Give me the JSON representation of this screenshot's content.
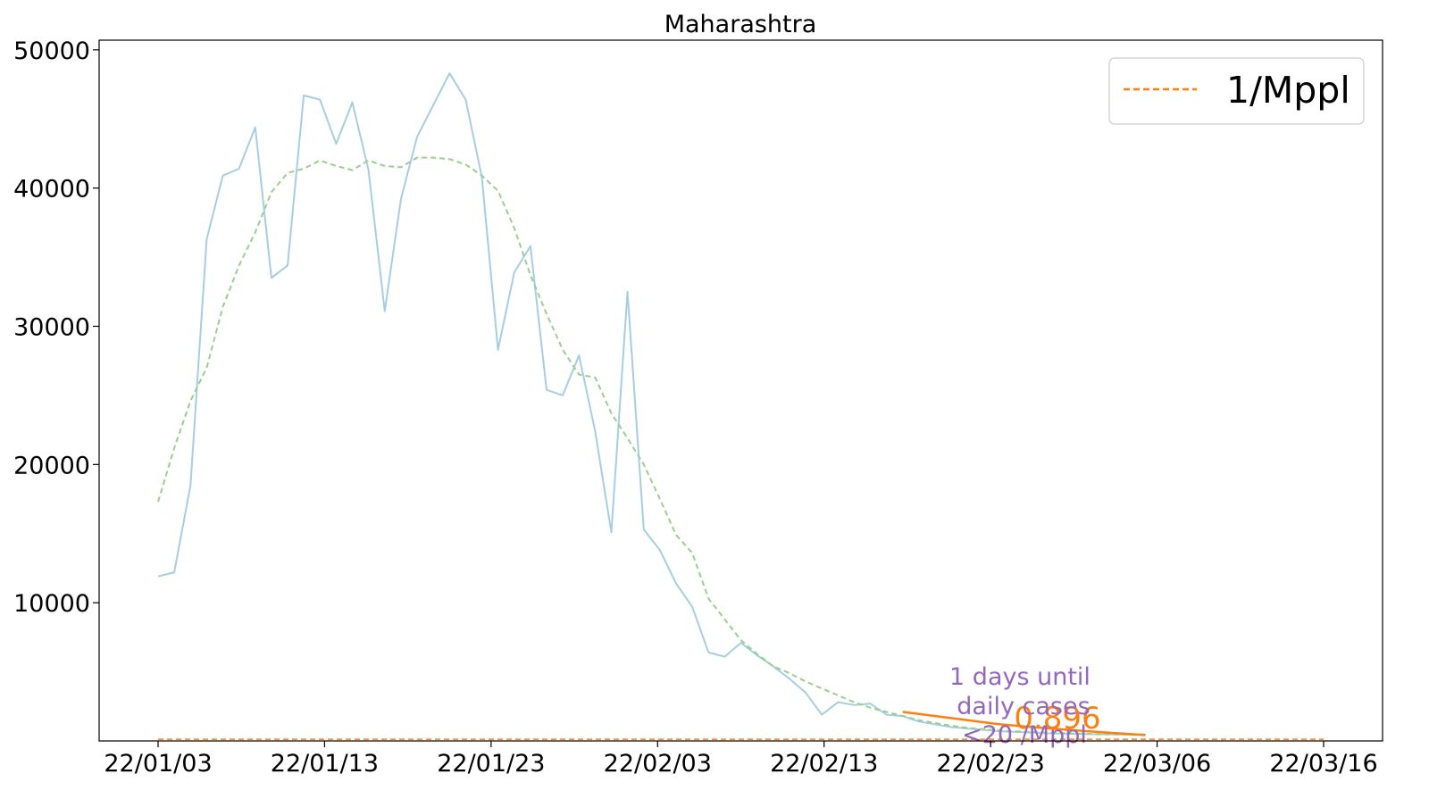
{
  "chart_data": {
    "type": "line",
    "title": "Maharashtra",
    "xlabel": "",
    "ylabel": "",
    "x_tick_labels": [
      "22/01/03",
      "22/01/13",
      "22/01/23",
      "22/02/03",
      "22/02/13",
      "22/02/23",
      "22/03/06",
      "22/03/16"
    ],
    "y_tick_labels": [
      "10000",
      "20000",
      "30000",
      "40000",
      "50000"
    ],
    "x_range": [
      "2022-01-03",
      "2022-03-16"
    ],
    "ylim": [
      0,
      50700
    ],
    "grid": false,
    "legend": {
      "position": "top-right",
      "entries": [
        "1/Mppl"
      ]
    },
    "colors": {
      "daily": "#a6cee3",
      "rolling_avg": "#98d08c",
      "fit": "#ff7f0e",
      "threshold": "#ff7f0e",
      "annotation": "#9467bd"
    },
    "series": [
      {
        "values_x": [
          "2022-01-03",
          "2022-01-04",
          "2022-01-05",
          "2022-01-06",
          "2022-01-07",
          "2022-01-08",
          "2022-01-09",
          "2022-01-10",
          "2022-01-11",
          "2022-01-12",
          "2022-01-13",
          "2022-01-14",
          "2022-01-15",
          "2022-01-16",
          "2022-01-17",
          "2022-01-18",
          "2022-01-19",
          "2022-01-20",
          "2022-01-21",
          "2022-01-22",
          "2022-01-23",
          "2022-01-24",
          "2022-01-25",
          "2022-01-26",
          "2022-01-27",
          "2022-01-28",
          "2022-01-29",
          "2022-01-30",
          "2022-01-31",
          "2022-02-01",
          "2022-02-02",
          "2022-02-03",
          "2022-02-04",
          "2022-02-05",
          "2022-02-06",
          "2022-02-07",
          "2022-02-08",
          "2022-02-09",
          "2022-02-10",
          "2022-02-11",
          "2022-02-12",
          "2022-02-13",
          "2022-02-14",
          "2022-02-15",
          "2022-02-16",
          "2022-02-17",
          "2022-02-18",
          "2022-02-19",
          "2022-02-20",
          "2022-02-21",
          "2022-02-22",
          "2022-02-23",
          "2022-02-24",
          "2022-02-25",
          "2022-02-26",
          "2022-02-27",
          "2022-02-28",
          "2022-03-01",
          "2022-03-02",
          "2022-03-03",
          "2022-03-04",
          "2022-03-05"
        ],
        "values": [
          11900,
          12200,
          18500,
          36300,
          40900,
          41400,
          44400,
          33500,
          34400,
          46700,
          46400,
          43200,
          46200,
          41300,
          31100,
          39200,
          43700,
          46000,
          48300,
          46400,
          40800,
          28300,
          33900,
          35800,
          25400,
          25000,
          27900,
          22400,
          15100,
          32500,
          15300,
          13800,
          11400,
          9700,
          6400,
          6100,
          7100,
          6200,
          5400,
          4500,
          3500,
          1900,
          2800,
          2600,
          2700,
          1900,
          1800,
          1400,
          1200,
          1000,
          900,
          800,
          700,
          650,
          600,
          550,
          520,
          500,
          480,
          470,
          450,
          430
        ]
      },
      {
        "values_x": [
          "2022-01-03",
          "2022-01-04",
          "2022-01-05",
          "2022-01-06",
          "2022-01-07",
          "2022-01-08",
          "2022-01-09",
          "2022-01-10",
          "2022-01-11",
          "2022-01-12",
          "2022-01-13",
          "2022-01-14",
          "2022-01-15",
          "2022-01-16",
          "2022-01-17",
          "2022-01-18",
          "2022-01-19",
          "2022-01-20",
          "2022-01-21",
          "2022-01-22",
          "2022-01-23",
          "2022-01-24",
          "2022-01-25",
          "2022-01-26",
          "2022-01-27",
          "2022-01-28",
          "2022-01-29",
          "2022-01-30",
          "2022-01-31",
          "2022-02-01",
          "2022-02-02",
          "2022-02-03",
          "2022-02-04",
          "2022-02-05",
          "2022-02-06",
          "2022-02-07",
          "2022-02-08",
          "2022-02-09",
          "2022-02-10",
          "2022-02-11",
          "2022-02-12",
          "2022-02-13",
          "2022-02-14",
          "2022-02-15",
          "2022-02-16",
          "2022-02-17",
          "2022-02-18",
          "2022-02-19",
          "2022-02-20",
          "2022-02-21",
          "2022-02-22",
          "2022-02-23",
          "2022-02-24",
          "2022-02-25",
          "2022-02-26",
          "2022-02-27",
          "2022-02-28",
          "2022-03-01",
          "2022-03-02",
          "2022-03-03",
          "2022-03-04",
          "2022-03-05"
        ],
        "values": [
          17300,
          21200,
          24600,
          27000,
          31400,
          34400,
          36800,
          39700,
          41100,
          41400,
          42000,
          41600,
          41300,
          42000,
          41600,
          41500,
          42200,
          42200,
          42100,
          41700,
          40900,
          39800,
          37100,
          33700,
          30900,
          28300,
          26500,
          26300,
          23700,
          21900,
          20000,
          17500,
          14900,
          13600,
          10300,
          8800,
          7300,
          6300,
          5400,
          4900,
          4300,
          3800,
          3300,
          2800,
          2400,
          2100,
          1800,
          1500,
          1300,
          1100,
          950,
          850,
          750,
          700,
          650,
          600,
          560,
          530,
          500,
          480,
          460,
          440
        ]
      },
      {
        "values_x": [
          "2022-02-18",
          "2022-02-20",
          "2022-02-22",
          "2022-02-24",
          "2022-02-26",
          "2022-02-28",
          "2022-03-02",
          "2022-03-04",
          "2022-03-05"
        ],
        "values": [
          2100,
          1800,
          1500,
          1200,
          1000,
          820,
          650,
          500,
          440
        ]
      },
      {
        "name": "1/Mppl",
        "values_x": [
          "2022-01-03",
          "2022-03-16"
        ],
        "values": [
          124,
          124
        ]
      }
    ],
    "annotations": {
      "fit_value": "0.896",
      "days_text_line1": "1 days until",
      "days_text_line2": "daily cases",
      "days_text_line3": "<20 /Mppl"
    }
  }
}
